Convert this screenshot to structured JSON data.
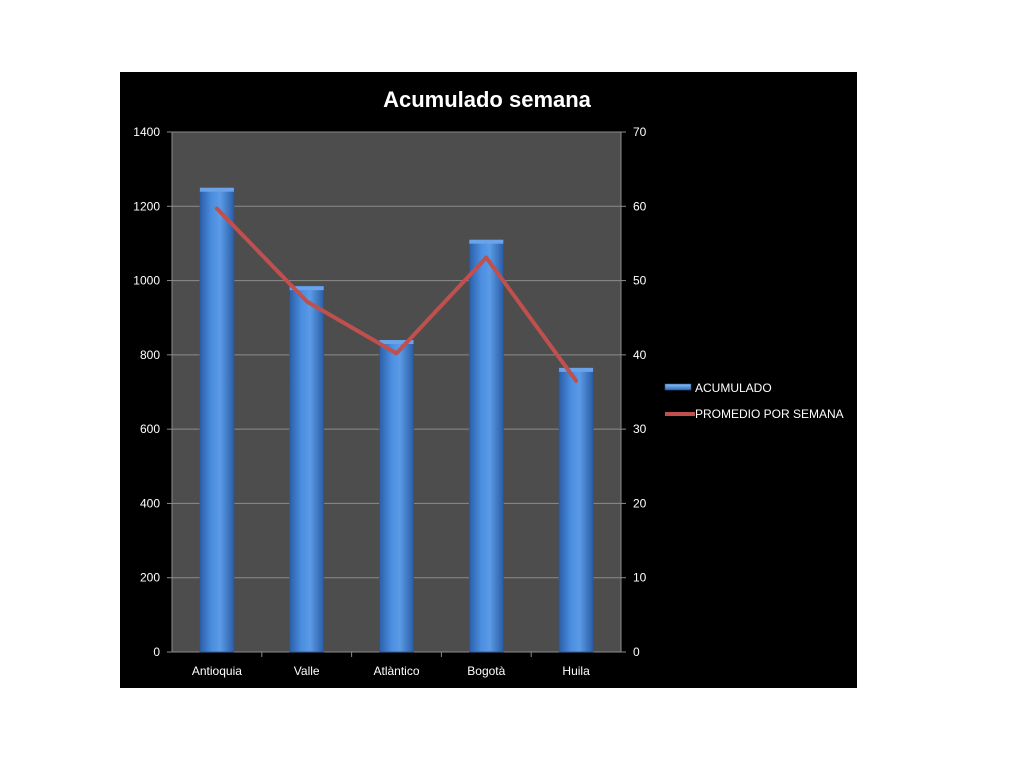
{
  "chart_data": {
    "type": "bar",
    "title": "Acumulado semana",
    "xlabel": "",
    "ylabel": "",
    "categories": [
      "Antioquia",
      "Valle",
      "Atlàntico",
      "Bogotà",
      "Huila"
    ],
    "series": [
      {
        "name": "ACUMULADO",
        "type": "bar",
        "axis": "left",
        "values": [
          1250,
          985,
          840,
          1110,
          765
        ]
      },
      {
        "name": "PROMEDIO POR SEMANA",
        "type": "line",
        "axis": "right",
        "values": [
          59.7,
          47.2,
          40.2,
          53.1,
          36.5
        ]
      }
    ],
    "ylim": [
      0,
      1400
    ],
    "y_ticks": [
      "0",
      "200",
      "400",
      "600",
      "800",
      "1000",
      "1200",
      "1400"
    ],
    "y2lim": [
      0,
      70
    ],
    "y2_ticks": [
      "0",
      "10",
      "20",
      "30",
      "40",
      "50",
      "60",
      "70"
    ],
    "grid": true,
    "legend_position": "right",
    "colors": {
      "background": "#000000",
      "plot_area": "#4d4d4d",
      "gridline": "#8c8c8c",
      "bar": "#3d7fd0",
      "bar_highlight": "#6aa3ea",
      "line": "#c0504d",
      "text": "#ffffff"
    }
  }
}
